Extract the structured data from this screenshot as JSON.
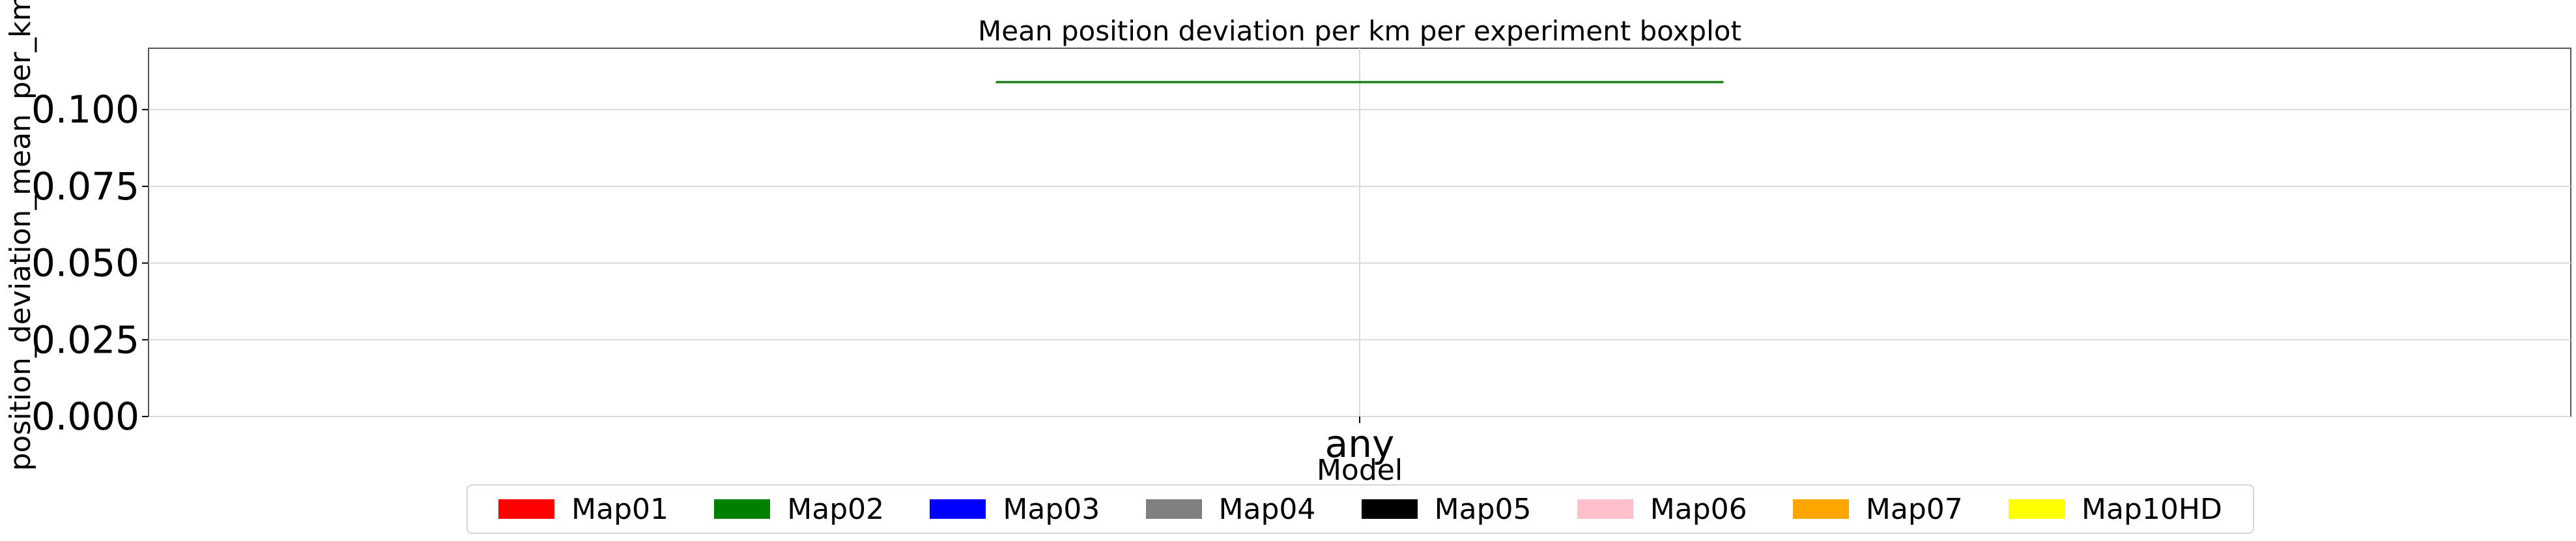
{
  "chart_data": {
    "type": "boxplot",
    "title": "Mean position deviation per km per experiment boxplot",
    "xlabel": "Model",
    "ylabel": "position_deviation_mean_per_km",
    "categories": [
      "any"
    ],
    "ylim": [
      0,
      0.12
    ],
    "yticks": [
      0.0,
      0.025,
      0.05,
      0.075,
      0.1
    ],
    "ytick_labels": [
      "0.000",
      "0.025",
      "0.050",
      "0.075",
      "0.100"
    ],
    "grid": true,
    "legend_position": "bottom-center",
    "boxes": [
      {
        "category": "any",
        "min": 0.109,
        "q1": 0.109,
        "median": 0.109,
        "q3": 0.109,
        "max": 0.109,
        "color": "#2ca02c"
      }
    ],
    "legend": [
      {
        "label": "Map01",
        "color": "#ff0000"
      },
      {
        "label": "Map02",
        "color": "#008000"
      },
      {
        "label": "Map03",
        "color": "#0000ff"
      },
      {
        "label": "Map04",
        "color": "#808080"
      },
      {
        "label": "Map05",
        "color": "#000000"
      },
      {
        "label": "Map06",
        "color": "#ffc0cb"
      },
      {
        "label": "Map07",
        "color": "#ffa500"
      },
      {
        "label": "Map10HD",
        "color": "#ffff00"
      }
    ]
  }
}
